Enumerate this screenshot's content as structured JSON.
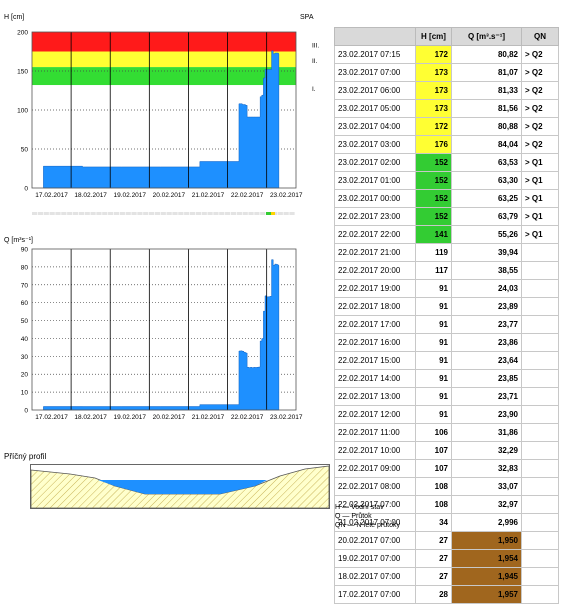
{
  "h_chart": {
    "unit_label": "H [cm]",
    "station_label": "SPA",
    "y_ticks": [
      "200",
      "150",
      "100",
      "50",
      "0"
    ],
    "level_labels": [
      "III.",
      "II.",
      "I."
    ],
    "x_ticks": [
      "17.02.2017",
      "18.02.2017",
      "19.02.2017",
      "20.02.2017",
      "21.02.2017",
      "22.02.2017",
      "23.02.2017"
    ],
    "zones": [
      {
        "from": 175,
        "to": 200,
        "color": "#ff1a1a"
      },
      {
        "from": 155,
        "to": 175,
        "color": "#ffff33"
      },
      {
        "from": 132,
        "to": 155,
        "color": "#33dd33"
      }
    ]
  },
  "q_chart": {
    "unit_label": "Q [m³s⁻¹]",
    "y_ticks": [
      "90",
      "80",
      "70",
      "60",
      "50",
      "40",
      "30",
      "20",
      "10",
      "0"
    ],
    "x_ticks": [
      "17.02.2017",
      "18.02.2017",
      "19.02.2017",
      "20.02.2017",
      "21.02.2017",
      "22.02.2017",
      "23.02.2017"
    ]
  },
  "profile": {
    "title": "Příčný profil"
  },
  "table": {
    "headers": [
      "",
      "H [cm]",
      "Q [m³.s⁻¹]",
      "QN"
    ],
    "rows": [
      {
        "time": "23.02.2017 07:15",
        "h": "172",
        "q": "80,82",
        "n": "> Q2",
        "hc": "#ffff33",
        "qc": ""
      },
      {
        "time": "23.02.2017 07:00",
        "h": "173",
        "q": "81,07",
        "n": "> Q2",
        "hc": "#ffff33",
        "qc": ""
      },
      {
        "time": "23.02.2017 06:00",
        "h": "173",
        "q": "81,33",
        "n": "> Q2",
        "hc": "#ffff33",
        "qc": ""
      },
      {
        "time": "23.02.2017 05:00",
        "h": "173",
        "q": "81,56",
        "n": "> Q2",
        "hc": "#ffff33",
        "qc": ""
      },
      {
        "time": "23.02.2017 04:00",
        "h": "172",
        "q": "80,88",
        "n": "> Q2",
        "hc": "#ffff33",
        "qc": ""
      },
      {
        "time": "23.02.2017 03:00",
        "h": "176",
        "q": "84,04",
        "n": "> Q2",
        "hc": "#ffff33",
        "qc": ""
      },
      {
        "time": "23.02.2017 02:00",
        "h": "152",
        "q": "63,53",
        "n": "> Q1",
        "hc": "#33cc33",
        "qc": ""
      },
      {
        "time": "23.02.2017 01:00",
        "h": "152",
        "q": "63,30",
        "n": "> Q1",
        "hc": "#33cc33",
        "qc": ""
      },
      {
        "time": "23.02.2017 00:00",
        "h": "152",
        "q": "63,25",
        "n": "> Q1",
        "hc": "#33cc33",
        "qc": ""
      },
      {
        "time": "22.02.2017 23:00",
        "h": "152",
        "q": "63,79",
        "n": "> Q1",
        "hc": "#33cc33",
        "qc": ""
      },
      {
        "time": "22.02.2017 22:00",
        "h": "141",
        "q": "55,26",
        "n": "> Q1",
        "hc": "#33cc33",
        "qc": ""
      },
      {
        "time": "22.02.2017 21:00",
        "h": "119",
        "q": "39,94",
        "n": "",
        "hc": "",
        "qc": ""
      },
      {
        "time": "22.02.2017 20:00",
        "h": "117",
        "q": "38,55",
        "n": "",
        "hc": "",
        "qc": ""
      },
      {
        "time": "22.02.2017 19:00",
        "h": "91",
        "q": "24,03",
        "n": "",
        "hc": "",
        "qc": ""
      },
      {
        "time": "22.02.2017 18:00",
        "h": "91",
        "q": "23,89",
        "n": "",
        "hc": "",
        "qc": ""
      },
      {
        "time": "22.02.2017 17:00",
        "h": "91",
        "q": "23,77",
        "n": "",
        "hc": "",
        "qc": ""
      },
      {
        "time": "22.02.2017 16:00",
        "h": "91",
        "q": "23,86",
        "n": "",
        "hc": "",
        "qc": ""
      },
      {
        "time": "22.02.2017 15:00",
        "h": "91",
        "q": "23,64",
        "n": "",
        "hc": "",
        "qc": ""
      },
      {
        "time": "22.02.2017 14:00",
        "h": "91",
        "q": "23,85",
        "n": "",
        "hc": "",
        "qc": ""
      },
      {
        "time": "22.02.2017 13:00",
        "h": "91",
        "q": "23,71",
        "n": "",
        "hc": "",
        "qc": ""
      },
      {
        "time": "22.02.2017 12:00",
        "h": "91",
        "q": "23,90",
        "n": "",
        "hc": "",
        "qc": ""
      },
      {
        "time": "22.02.2017 11:00",
        "h": "106",
        "q": "31,86",
        "n": "",
        "hc": "",
        "qc": ""
      },
      {
        "time": "22.02.2017 10:00",
        "h": "107",
        "q": "32,29",
        "n": "",
        "hc": "",
        "qc": ""
      },
      {
        "time": "22.02.2017 09:00",
        "h": "107",
        "q": "32,83",
        "n": "",
        "hc": "",
        "qc": ""
      },
      {
        "time": "22.02.2017 08:00",
        "h": "108",
        "q": "33,07",
        "n": "",
        "hc": "",
        "qc": ""
      },
      {
        "time": "22.02.2017 07:00",
        "h": "108",
        "q": "32,97",
        "n": "",
        "hc": "",
        "qc": ""
      },
      {
        "time": "21.02.2017 07:00",
        "h": "34",
        "q": "2,996",
        "n": "",
        "hc": "",
        "qc": ""
      },
      {
        "time": "20.02.2017 07:00",
        "h": "27",
        "q": "1,950",
        "n": "",
        "hc": "",
        "qc": "#a0661e"
      },
      {
        "time": "19.02.2017 07:00",
        "h": "27",
        "q": "1,954",
        "n": "",
        "hc": "",
        "qc": "#a0661e"
      },
      {
        "time": "18.02.2017 07:00",
        "h": "27",
        "q": "1,945",
        "n": "",
        "hc": "",
        "qc": "#a0661e"
      },
      {
        "time": "17.02.2017 07:00",
        "h": "28",
        "q": "1,957",
        "n": "",
        "hc": "",
        "qc": "#a0661e"
      }
    ]
  },
  "legend": [
    "H — Vodní stav",
    "Q — Průtok",
    "QN — N-leté průtoky"
  ],
  "chart_data": [
    {
      "type": "area",
      "ylabel": "H [cm]",
      "ylim": [
        0,
        200
      ],
      "grid": true,
      "x": [
        "17.02.2017 07:00",
        "18.02.2017 07:00",
        "19.02.2017 07:00",
        "20.02.2017 07:00",
        "21.02.2017 07:00",
        "22.02.2017 07:00",
        "22.02.2017 08:00",
        "22.02.2017 09:00",
        "22.02.2017 10:00",
        "22.02.2017 11:00",
        "22.02.2017 12:00",
        "22.02.2017 13:00",
        "22.02.2017 14:00",
        "22.02.2017 15:00",
        "22.02.2017 16:00",
        "22.02.2017 17:00",
        "22.02.2017 18:00",
        "22.02.2017 19:00",
        "22.02.2017 20:00",
        "22.02.2017 21:00",
        "22.02.2017 22:00",
        "22.02.2017 23:00",
        "23.02.2017 00:00",
        "23.02.2017 01:00",
        "23.02.2017 02:00",
        "23.02.2017 03:00",
        "23.02.2017 04:00",
        "23.02.2017 05:00",
        "23.02.2017 06:00",
        "23.02.2017 07:00",
        "23.02.2017 07:15"
      ],
      "series": [
        {
          "values": [
            28,
            27,
            27,
            27,
            34,
            108,
            108,
            107,
            107,
            106,
            91,
            91,
            91,
            91,
            91,
            91,
            91,
            91,
            117,
            119,
            141,
            152,
            152,
            152,
            152,
            176,
            172,
            173,
            173,
            173,
            172
          ]
        }
      ],
      "color": "#1e90ff"
    },
    {
      "type": "area",
      "ylabel": "Q [m³s⁻¹]",
      "ylim": [
        0,
        90
      ],
      "grid": true,
      "x": [
        "17.02.2017 07:00",
        "18.02.2017 07:00",
        "19.02.2017 07:00",
        "20.02.2017 07:00",
        "21.02.2017 07:00",
        "22.02.2017 07:00",
        "22.02.2017 08:00",
        "22.02.2017 09:00",
        "22.02.2017 10:00",
        "22.02.2017 11:00",
        "22.02.2017 12:00",
        "22.02.2017 13:00",
        "22.02.2017 14:00",
        "22.02.2017 15:00",
        "22.02.2017 16:00",
        "22.02.2017 17:00",
        "22.02.2017 18:00",
        "22.02.2017 19:00",
        "22.02.2017 20:00",
        "22.02.2017 21:00",
        "22.02.2017 22:00",
        "22.02.2017 23:00",
        "23.02.2017 00:00",
        "23.02.2017 01:00",
        "23.02.2017 02:00",
        "23.02.2017 03:00",
        "23.02.2017 04:00",
        "23.02.2017 05:00",
        "23.02.2017 06:00",
        "23.02.2017 07:00",
        "23.02.2017 07:15"
      ],
      "series": [
        {
          "values": [
            1.957,
            1.945,
            1.954,
            1.95,
            2.996,
            32.97,
            33.07,
            32.83,
            32.29,
            31.86,
            23.9,
            23.71,
            23.85,
            23.64,
            23.86,
            23.77,
            23.89,
            24.03,
            38.55,
            39.94,
            55.26,
            63.79,
            63.25,
            63.3,
            63.53,
            84.04,
            80.88,
            81.56,
            81.33,
            81.07,
            80.82
          ]
        }
      ],
      "color": "#1e90ff"
    }
  ]
}
